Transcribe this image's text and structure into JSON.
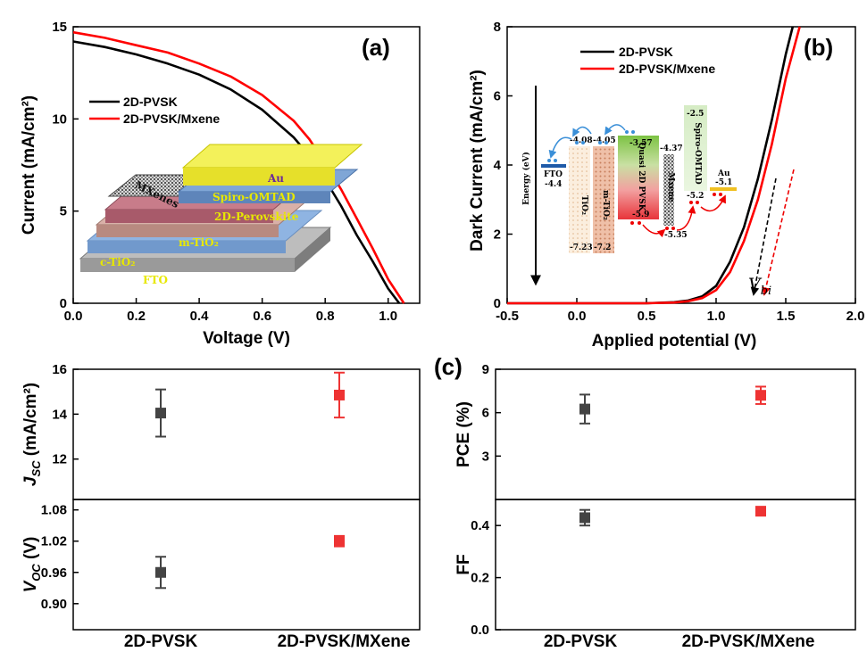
{
  "chart_data": [
    {
      "id": "a",
      "panel_label": "(a)",
      "type": "line",
      "xlabel": "Voltage (V)",
      "ylabel": "Current (mA/cm²)",
      "xlim": [
        0,
        1.1
      ],
      "ylim": [
        0,
        15
      ],
      "xticks": [
        "0.0",
        "0.2",
        "0.4",
        "0.6",
        "0.8",
        "1.0"
      ],
      "yticks": [
        "0",
        "5",
        "10",
        "15"
      ],
      "legend_position": "center-left",
      "series": [
        {
          "name": "2D-PVSK",
          "color": "#000000",
          "x": [
            0,
            0.1,
            0.2,
            0.3,
            0.4,
            0.5,
            0.6,
            0.7,
            0.75,
            0.8,
            0.85,
            0.9,
            0.95,
            1.0,
            1.035
          ],
          "y": [
            14.2,
            13.9,
            13.5,
            13.0,
            12.4,
            11.6,
            10.5,
            9.0,
            8.0,
            6.7,
            5.3,
            3.7,
            2.3,
            0.8,
            0
          ]
        },
        {
          "name": "2D-PVSK/Mxene",
          "color": "#ff0000",
          "x": [
            0,
            0.1,
            0.2,
            0.3,
            0.4,
            0.5,
            0.6,
            0.7,
            0.75,
            0.8,
            0.85,
            0.9,
            0.95,
            1.0,
            1.05
          ],
          "y": [
            14.7,
            14.4,
            14.0,
            13.6,
            13.0,
            12.3,
            11.3,
            9.9,
            8.9,
            7.6,
            6.2,
            4.6,
            3.0,
            1.3,
            0
          ]
        }
      ],
      "inset_layers": [
        "Au",
        "Spiro-OMTAD",
        "MXenes",
        "2D-Perovskite",
        "m-TiO₂",
        "c-TiO₂",
        "FTO"
      ]
    },
    {
      "id": "b",
      "panel_label": "(b)",
      "type": "line",
      "xlabel": "Applied potential (V)",
      "ylabel": "Dark Current (mA/cm²)",
      "xlim": [
        -0.5,
        2.0
      ],
      "ylim": [
        0,
        8
      ],
      "xticks": [
        "-0.5",
        "0.0",
        "0.5",
        "1.0",
        "1.5",
        "2.0"
      ],
      "yticks": [
        "0",
        "2",
        "4",
        "6",
        "8"
      ],
      "legend_position": "top-center",
      "annotation": "V",
      "annotation_sub": "bi",
      "series": [
        {
          "name": "2D-PVSK",
          "color": "#000000",
          "x": [
            -0.5,
            0.5,
            0.7,
            0.8,
            0.9,
            1.0,
            1.1,
            1.2,
            1.3,
            1.4,
            1.5,
            1.55
          ],
          "y": [
            0,
            0,
            0.03,
            0.08,
            0.2,
            0.5,
            1.2,
            2.2,
            3.6,
            5.3,
            7.2,
            8.0
          ]
        },
        {
          "name": "2D-PVSK/Mxene",
          "color": "#ff0000",
          "x": [
            -0.5,
            0.5,
            0.7,
            0.8,
            0.9,
            1.0,
            1.1,
            1.2,
            1.3,
            1.4,
            1.5,
            1.6
          ],
          "y": [
            0,
            0,
            0.02,
            0.06,
            0.15,
            0.38,
            0.9,
            1.8,
            3.0,
            4.6,
            6.5,
            8.0
          ]
        }
      ],
      "inset_title": "Energy (eV)",
      "inset_bands": {
        "FTO": [
          "-4.4"
        ],
        "TiO₂": [
          "-4.08",
          "-7.23"
        ],
        "m-TiO₂": [
          "-4.05",
          "-7.2"
        ],
        "Quasi 2D PVSK": [
          "-3.57",
          "-5.9"
        ],
        "Mxene": [
          "-4.37",
          "-5.35"
        ],
        "Spiro-OMTAD": [
          "-2.5",
          "-5.2"
        ],
        "Au": [
          "-5.1"
        ]
      }
    },
    {
      "id": "c",
      "panel_label": "(c)",
      "type": "scatter",
      "categories": [
        "2D-PVSK",
        "2D-PVSK/MXene"
      ],
      "colors": [
        "#444444",
        "#ee3333"
      ],
      "subplots": [
        {
          "id": "jsc",
          "ylabel": "J",
          "ylabel_sub": "SC",
          "ylabel_unit": " (mA/cm²)",
          "ylim": [
            10.2,
            16.0
          ],
          "yticks": [
            "12",
            "14",
            "16"
          ],
          "values": [
            14.05,
            14.85
          ],
          "errors": [
            1.05,
            1.0
          ]
        },
        {
          "id": "voc",
          "ylabel": "V",
          "ylabel_sub": "OC",
          "ylabel_unit": " (V)",
          "ylim": [
            0.85,
            1.1
          ],
          "yticks": [
            "0.90",
            "0.96",
            "1.02",
            "1.08"
          ],
          "values": [
            0.96,
            1.02
          ],
          "errors": [
            0.03,
            0.01
          ]
        },
        {
          "id": "pce",
          "ylabel": "PCE (%)",
          "ylabel_sub": "",
          "ylabel_unit": "",
          "ylim": [
            0,
            9
          ],
          "yticks": [
            "3",
            "6",
            "9"
          ],
          "values": [
            6.25,
            7.2
          ],
          "errors": [
            1.0,
            0.6
          ]
        },
        {
          "id": "ff",
          "ylabel": "FF",
          "ylabel_sub": "",
          "ylabel_unit": "",
          "ylim": [
            0,
            0.5
          ],
          "yticks": [
            "0.0",
            "0.2",
            "0.4"
          ],
          "values": [
            0.43,
            0.455
          ],
          "errors": [
            0.03,
            0.015
          ]
        }
      ]
    }
  ]
}
